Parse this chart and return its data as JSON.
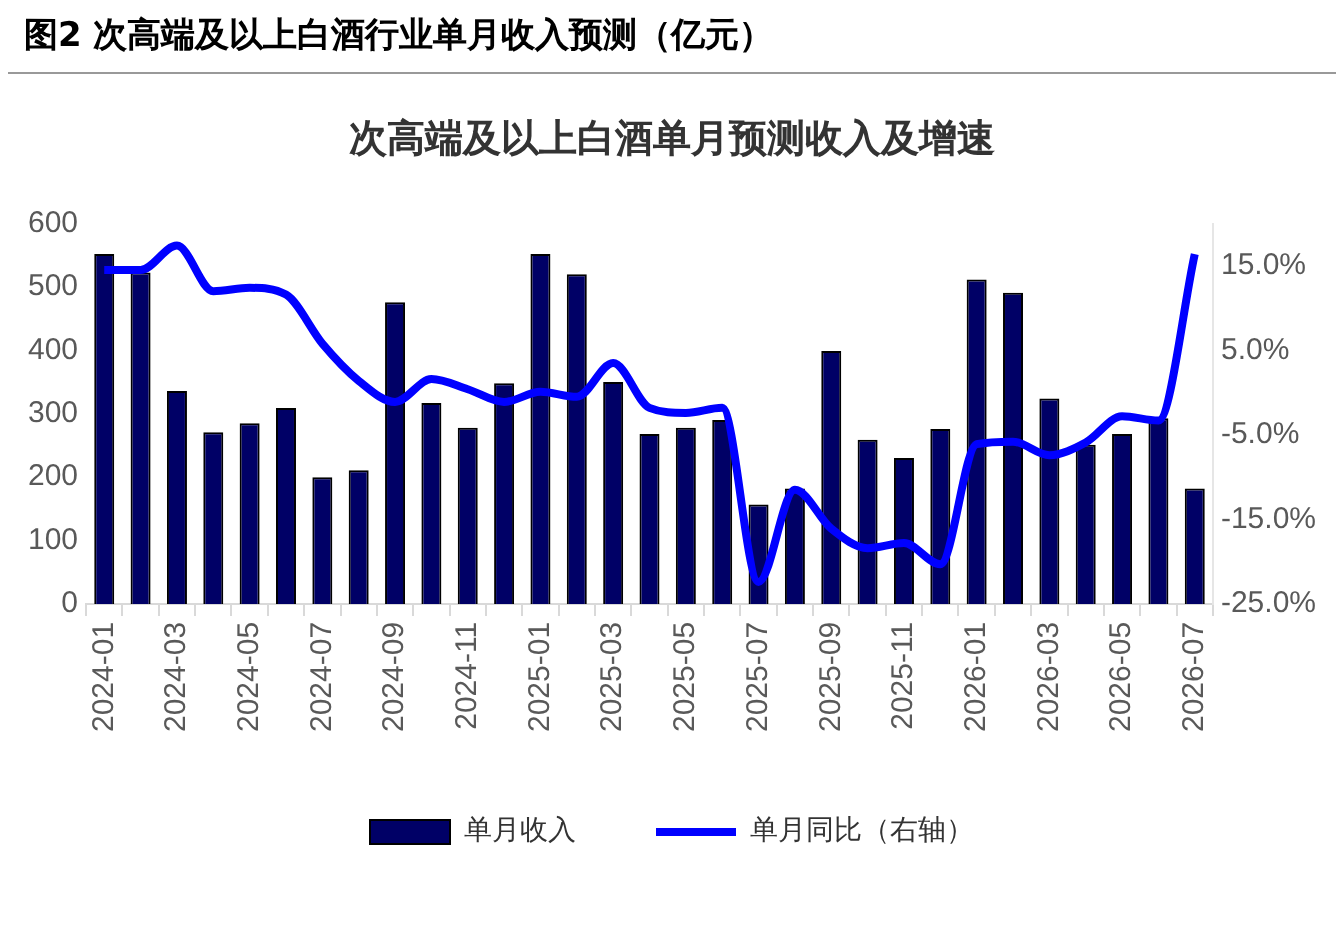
{
  "chart_data": {
    "type": "bar",
    "title": "图2  次高端及以上白酒行业单月收入预测（亿元）",
    "subtitle": "次高端及以上白酒单月预测收入及增速",
    "categories": [
      "2024-01",
      null,
      "2024-03",
      null,
      "2024-05",
      null,
      "2024-07",
      null,
      "2024-09",
      null,
      "2024-11",
      null,
      "2025-01",
      null,
      "2025-03",
      null,
      "2025-05",
      null,
      "2025-07",
      null,
      "2025-09",
      null,
      "2025-11",
      null,
      "2026-01",
      null,
      "2026-03",
      null,
      "2026-05",
      null,
      "2026-07"
    ],
    "series": [
      {
        "name": "单月收入",
        "color": "#000066",
        "values": [
          552,
          523,
          336,
          271,
          285,
          309,
          200,
          211,
          476,
          317,
          278,
          348,
          552,
          520,
          350,
          268,
          278,
          290,
          157,
          182,
          399,
          259,
          230,
          276,
          512,
          491,
          324,
          251,
          268,
          293,
          182
        ]
      },
      {
        "name": "单月同比（右轴）",
        "type": "line",
        "axis": "y2",
        "color": "#0000ff",
        "values": [
          14.5,
          14.5,
          17.4,
          12,
          12.4,
          11.6,
          5.8,
          1.4,
          -1.1,
          1.6,
          0.4,
          -1.1,
          0.1,
          -0.5,
          3.5,
          -1.8,
          -2.4,
          -1.8,
          -22.4,
          -11.5,
          -16.1,
          -18.4,
          -17.8,
          -20.3,
          -6.1,
          -5.8,
          -7.4,
          -5.9,
          -2.8,
          -3.3,
          16.4
        ]
      }
    ],
    "ylim": [
      0,
      600
    ],
    "yticks": [
      0,
      100,
      200,
      300,
      400,
      500,
      600
    ],
    "y2lim": [
      -25,
      20
    ],
    "y2ticks": [
      {
        "value": -25,
        "label": "-25.0%"
      },
      {
        "value": -15,
        "label": "-15.0%"
      },
      {
        "value": -5,
        "label": "-5.0%"
      },
      {
        "value": 5,
        "label": "5.0%"
      },
      {
        "value": 15,
        "label": "15.0%"
      }
    ],
    "grid": false,
    "legend": "bottom",
    "marker": "none"
  }
}
